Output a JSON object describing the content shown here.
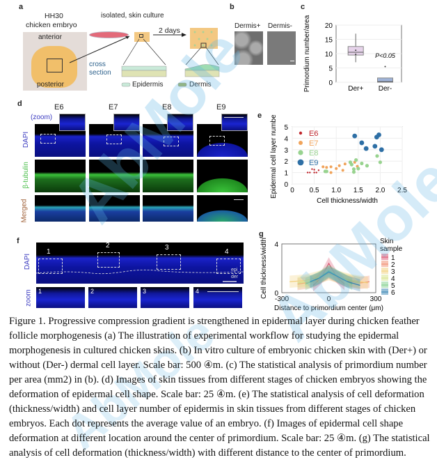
{
  "watermark": "AbMole",
  "panel_a": {
    "label": "a",
    "stage": "HH30",
    "organism": "chicken embryo",
    "anterior": "anterior",
    "posterior": "posterior",
    "culture": "isolated, skin culture",
    "days": "2 days",
    "cross1": "cross",
    "cross2": "section",
    "legend_epidermis": "Epidermis",
    "legend_dermis": "Dermis",
    "colors": {
      "epidermis": "#c9ead9",
      "dermis": "#dfe3b4",
      "skin": "#f5c97a"
    }
  },
  "panel_b": {
    "label": "b",
    "left": "Dermis+",
    "right": "Dermis-"
  },
  "panel_c": {
    "label": "c"
  },
  "panel_d": {
    "label": "d",
    "stages": [
      "E6",
      "E7",
      "E8",
      "E9"
    ],
    "zoom_label": "(zoom)",
    "rows": [
      "DAPI",
      "β-tubulin",
      "Merged"
    ]
  },
  "panel_e": {
    "label": "e"
  },
  "panel_f": {
    "label": "f",
    "row_dapi": "DAPI",
    "row_zoom": "zoom",
    "regions": [
      "1",
      "2",
      "3",
      "4"
    ],
    "epi": "epi",
    "der": "der"
  },
  "panel_g": {
    "label": "g"
  },
  "chart_data": [
    {
      "id": "c",
      "type": "box",
      "ylabel": "Primordium number/area",
      "categories": [
        "Der+",
        "Der-"
      ],
      "yticks": [
        "0",
        "5",
        "10",
        "15",
        "20"
      ],
      "ylim": [
        0,
        20
      ],
      "boxes": [
        {
          "name": "Der+",
          "min": 7,
          "q1": 9.5,
          "median": 10.5,
          "q3": 12.5,
          "max": 17,
          "points": [
            9.8,
            11.2
          ],
          "color": "#e6d3ea"
        },
        {
          "name": "Der-",
          "min": 0,
          "q1": 0,
          "median": 0.2,
          "q3": 1.5,
          "max": 1.5,
          "outliers": [
            5.5
          ],
          "color": "#9fb3d8"
        }
      ],
      "annotation": "P<0.05"
    },
    {
      "id": "e",
      "type": "scatter",
      "xlabel": "Cell thickness/width",
      "ylabel": "Epidermal cell layer number",
      "xlim": [
        0,
        2.5
      ],
      "ylim": [
        0,
        5
      ],
      "xticks": [
        "0",
        "0.5",
        "1.0",
        "1.5",
        "2.0",
        "2.5"
      ],
      "yticks": [
        "0",
        "1",
        "2",
        "3",
        "4",
        "5"
      ],
      "legend": "top-left",
      "series": [
        {
          "name": "E6",
          "color": "#c0262c",
          "x": [
            0.35,
            0.4,
            0.45,
            0.5,
            0.55,
            0.6,
            0.5
          ],
          "y": [
            1,
            1,
            1.3,
            1,
            1,
            1.2,
            1.25
          ]
        },
        {
          "name": "E7",
          "color": "#f0a35a",
          "x": [
            0.7,
            0.78,
            0.88,
            0.88,
            1.0,
            1.07,
            1.15,
            1.2,
            1.42,
            1.48
          ],
          "y": [
            1.5,
            1.45,
            1.5,
            1.0,
            1.35,
            1.6,
            1.2,
            1.75,
            1.9,
            1.55
          ]
        },
        {
          "name": "E8",
          "color": "#98d38f",
          "x": [
            0.75,
            0.78,
            1.32,
            1.35,
            1.4,
            1.4,
            1.45,
            1.5,
            1.58,
            1.7,
            1.93,
            2.0
          ],
          "y": [
            1.1,
            1.1,
            1.9,
            1.7,
            1.3,
            1.05,
            2.1,
            1.35,
            1.8,
            1.6,
            2.45,
            1.9
          ]
        },
        {
          "name": "E9",
          "color": "#2e6fa5",
          "x": [
            1.42,
            1.58,
            1.68,
            1.88,
            1.92,
            1.97,
            2.03
          ],
          "y": [
            4.2,
            3.6,
            3.1,
            3.3,
            4.1,
            4.3,
            3.0
          ]
        }
      ]
    },
    {
      "id": "g",
      "type": "line",
      "xlabel": "Distance to primordium center (μm)",
      "ylabel": "Cell thickness/width",
      "xlim": [
        -300,
        300
      ],
      "ylim": [
        0,
        4
      ],
      "xticks": [
        "-300",
        "0",
        "300"
      ],
      "yticks": [
        "0",
        "4"
      ],
      "legend_title1": "Skin",
      "legend_title2": "sample",
      "series": [
        {
          "name": "1",
          "color": "#d9506e",
          "x": [
            -100,
            -50,
            0,
            50,
            100
          ],
          "y": [
            0.6,
            1.2,
            2.4,
            1.3,
            0.7
          ]
        },
        {
          "name": "2",
          "color": "#f08a6a",
          "x": [
            -200,
            -100,
            0,
            100,
            200,
            260
          ],
          "y": [
            0.7,
            0.9,
            1.6,
            1.0,
            0.8,
            0.9
          ]
        },
        {
          "name": "3",
          "color": "#f2cf7a",
          "x": [
            -250,
            -150,
            0,
            150,
            250
          ],
          "y": [
            0.9,
            1.0,
            1.5,
            1.0,
            0.8
          ]
        },
        {
          "name": "4",
          "color": "#d6e48a",
          "x": [
            -200,
            -100,
            0,
            100,
            200
          ],
          "y": [
            0.8,
            1.0,
            1.7,
            1.1,
            0.8
          ]
        },
        {
          "name": "5",
          "color": "#7fcf8a",
          "x": [
            -150,
            -75,
            0,
            75,
            150
          ],
          "y": [
            0.7,
            1.1,
            1.8,
            1.2,
            0.7
          ]
        },
        {
          "name": "6",
          "color": "#2f7fb0",
          "x": [
            -120,
            -60,
            0,
            60,
            120,
            200
          ],
          "y": [
            0.9,
            1.2,
            1.7,
            1.3,
            0.9,
            0.6
          ]
        }
      ]
    }
  ],
  "caption_lines": [
    "Figure 1. Progressive compression gradient is strengthened in epidermal layer during chicken feather",
    "follicle morphogenesis (a) The illustration of experimental workflow for studying the epidermal",
    "morphogenesis in cultured chicken skins. (b) In vitro culture of embryonic chicken skin with (Der+) or",
    "without (Der-) dermal cell layer. Scale bar: 500 ④m. (c) The statistical analysis of primordium number",
    "per area (mm2) in (b). (d) Images of skin tissues from different stages of chicken embryos showing the",
    "deformation of epidermal cell shape. Scale bar: 25 ④m. (e) The statistical analysis of cell deformation",
    "(thickness/width) and cell layer number of epidermis in skin tissues from different stages of chicken",
    "embryos. Each dot represents the average value of an embryo. (f) Images of epidermal cell shape",
    "deformation at different location around the center of primordium. Scale bar: 25 ④m. (g) The statistical",
    "analysis of cell deformation (thickness/width) with different distance to the center of primordium."
  ]
}
